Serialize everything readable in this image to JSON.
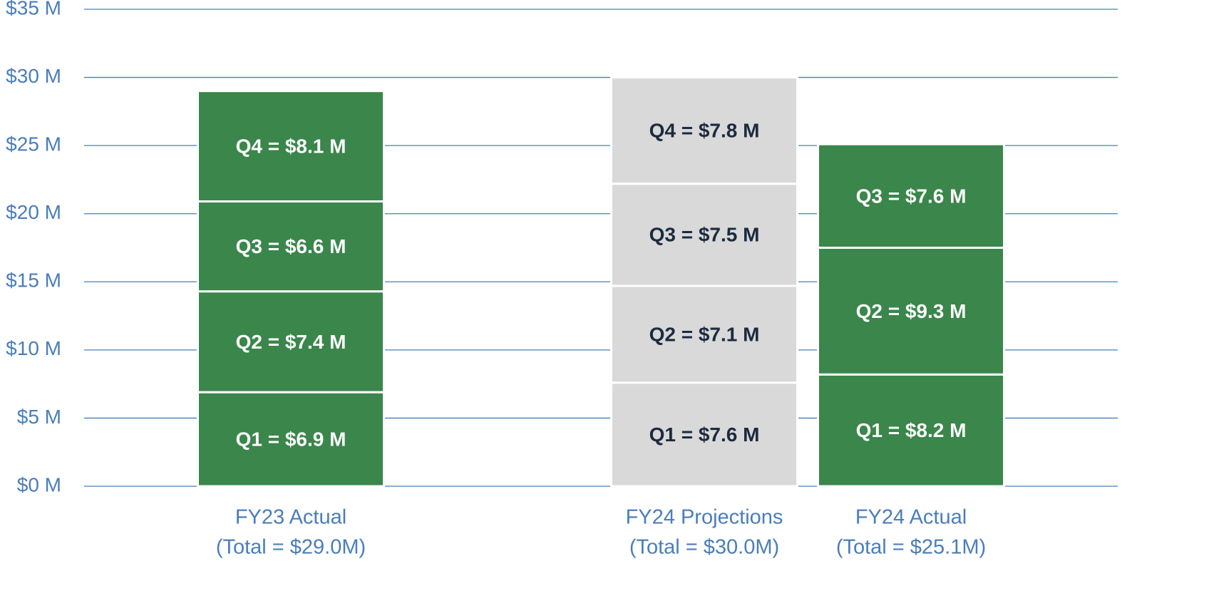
{
  "chart_data": {
    "type": "stacked_bar",
    "categories": [
      [
        "FY23 Actual",
        "(Total = $29.0M)"
      ],
      [
        "FY24 Projections",
        "(Total = $30.0M)"
      ],
      [
        "FY24 Actual",
        "(Total = $25.1M)"
      ]
    ],
    "series": [
      {
        "values": [
          6.9,
          7.6,
          8.2
        ],
        "value_labels": [
          "Q1 = $6.9 M",
          "Q1 = $7.6 M",
          "Q1 = $8.2 M"
        ]
      },
      {
        "values": [
          7.4,
          7.1,
          9.3
        ],
        "value_labels": [
          "Q2 = $7.4 M",
          "Q2 = $7.1 M",
          "Q2 = $9.3 M"
        ]
      },
      {
        "values": [
          6.6,
          7.5,
          7.6
        ],
        "value_labels": [
          "Q3 = $6.6 M",
          "Q3 = $7.5 M",
          "Q3 = $7.6 M"
        ]
      },
      {
        "values": [
          8.1,
          7.8,
          null
        ],
        "value_labels": [
          "Q4 = $8.1 M",
          "Q4 = $7.8 M",
          null
        ]
      }
    ],
    "category_colors": [
      "#3a864b",
      "#d9d9d9",
      "#3a864b"
    ],
    "category_label_colors": [
      "#ffffff",
      "#1c2b3f",
      "#ffffff"
    ],
    "ylim": [
      0,
      35
    ],
    "yticks": [
      {
        "value": 0,
        "label": "$0 M"
      },
      {
        "value": 5,
        "label": "$5 M"
      },
      {
        "value": 10,
        "label": "$10 M"
      },
      {
        "value": 15,
        "label": "$15 M"
      },
      {
        "value": 20,
        "label": "$20 M"
      },
      {
        "value": 25,
        "label": "$25 M"
      },
      {
        "value": 30,
        "label": "$30 M"
      },
      {
        "value": 35,
        "label": "$35 M"
      }
    ],
    "grid": true,
    "grid_color": "#4a7ebb"
  }
}
